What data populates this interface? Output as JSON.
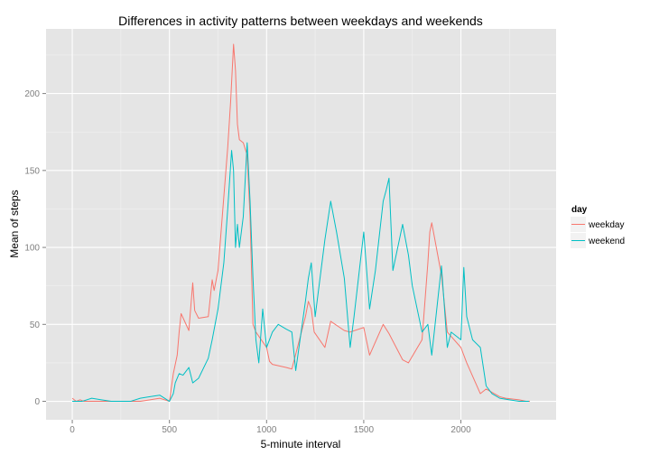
{
  "chart_data": {
    "type": "line",
    "title": "Differences in activity patterns between weekdays and weekends",
    "xlabel": "5-minute interval",
    "ylabel": "Mean of steps",
    "xlim": [
      -135,
      2490
    ],
    "ylim": [
      -12,
      242
    ],
    "x_ticks": [
      0,
      500,
      1000,
      1500,
      2000
    ],
    "y_ticks": [
      0,
      50,
      100,
      150,
      200
    ],
    "x_tick_labels": [
      "0",
      "500",
      "1000",
      "1500",
      "2000"
    ],
    "y_tick_labels": [
      "0",
      "50",
      "100",
      "150",
      "200"
    ],
    "grid": true,
    "legend_position": "right",
    "legend_title": "day",
    "series": [
      {
        "name": "weekday",
        "color": "#F8766D",
        "x": [
          0,
          20,
          40,
          60,
          80,
          100,
          150,
          200,
          250,
          300,
          350,
          400,
          450,
          500,
          520,
          540,
          550,
          560,
          600,
          620,
          630,
          650,
          700,
          720,
          730,
          750,
          800,
          815,
          830,
          840,
          850,
          860,
          880,
          900,
          915,
          930,
          945,
          1000,
          1015,
          1030,
          1100,
          1130,
          1200,
          1215,
          1230,
          1245,
          1300,
          1330,
          1400,
          1430,
          1500,
          1530,
          1600,
          1630,
          1700,
          1730,
          1800,
          1830,
          1840,
          1850,
          1900,
          1930,
          2000,
          2030,
          2100,
          2130,
          2200,
          2230,
          2300,
          2335,
          2355
        ],
        "y": [
          2,
          0,
          1,
          0,
          0,
          0,
          0,
          0,
          0,
          0,
          0,
          1,
          2,
          0,
          18,
          30,
          45,
          57,
          46,
          77,
          59,
          54,
          55,
          79,
          72,
          85,
          165,
          195,
          232,
          215,
          180,
          170,
          168,
          160,
          120,
          50,
          45,
          35,
          26,
          24,
          22,
          21,
          55,
          65,
          60,
          45,
          35,
          52,
          46,
          45,
          48,
          30,
          50,
          44,
          27,
          25,
          40,
          90,
          110,
          116,
          82,
          45,
          35,
          25,
          5,
          8,
          3,
          2,
          1,
          0,
          0
        ]
      },
      {
        "name": "weekend",
        "color": "#00BFC4",
        "x": [
          0,
          50,
          100,
          150,
          200,
          250,
          300,
          350,
          400,
          450,
          500,
          520,
          530,
          550,
          570,
          600,
          620,
          650,
          700,
          720,
          750,
          780,
          800,
          820,
          830,
          840,
          850,
          860,
          880,
          900,
          915,
          930,
          945,
          960,
          980,
          1000,
          1030,
          1060,
          1100,
          1130,
          1150,
          1200,
          1215,
          1230,
          1250,
          1300,
          1330,
          1360,
          1400,
          1430,
          1450,
          1500,
          1530,
          1560,
          1600,
          1615,
          1630,
          1650,
          1700,
          1730,
          1750,
          1800,
          1830,
          1850,
          1900,
          1930,
          1950,
          2000,
          2015,
          2030,
          2060,
          2100,
          2130,
          2160,
          2200,
          2250,
          2300,
          2350
        ],
        "y": [
          0,
          0,
          2,
          1,
          0,
          0,
          0,
          2,
          3,
          4,
          0,
          5,
          12,
          18,
          17,
          22,
          12,
          15,
          28,
          40,
          60,
          90,
          125,
          163,
          150,
          100,
          115,
          100,
          120,
          168,
          130,
          80,
          40,
          25,
          60,
          35,
          45,
          50,
          47,
          45,
          20,
          65,
          80,
          90,
          55,
          105,
          130,
          110,
          80,
          35,
          55,
          110,
          60,
          85,
          130,
          137,
          145,
          85,
          115,
          95,
          75,
          45,
          50,
          30,
          88,
          35,
          45,
          40,
          87,
          55,
          40,
          35,
          10,
          5,
          2,
          1,
          0,
          0
        ]
      }
    ]
  }
}
